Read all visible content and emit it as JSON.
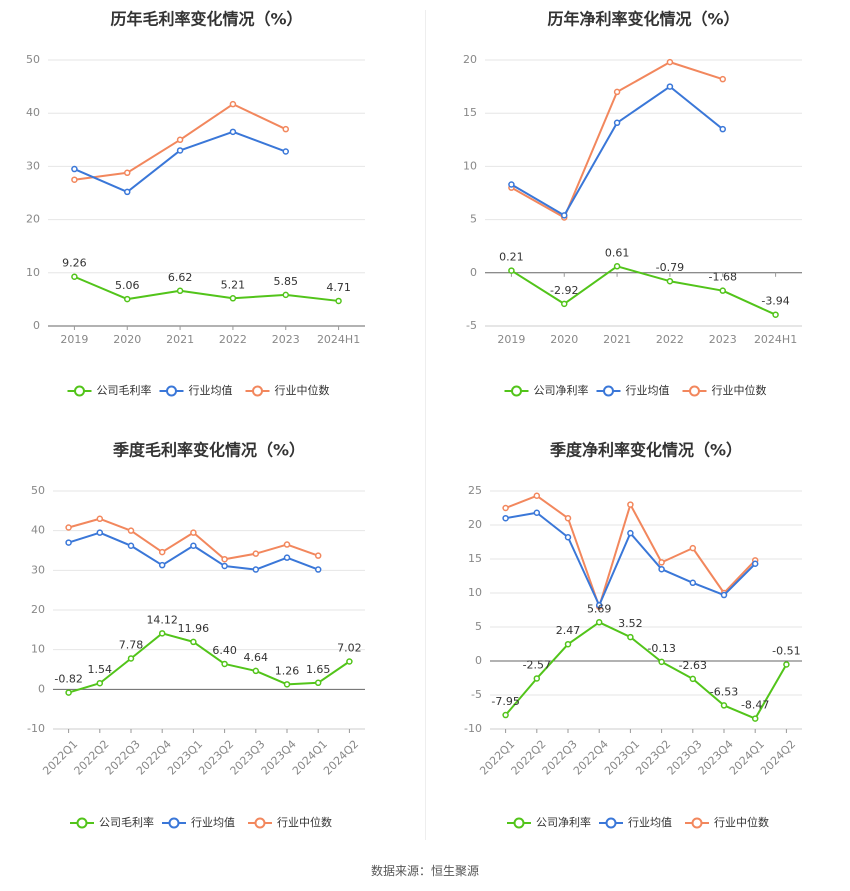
{
  "colors": {
    "company": "#52c41a",
    "avg": "#3a77d8",
    "median": "#f2875d"
  },
  "legend": {
    "avg": "行业均值",
    "median": "行业中位数"
  },
  "source": "数据来源：恒生聚源",
  "chart_data": [
    {
      "type": "line",
      "title": "历年毛利率变化情况（%）",
      "categories": [
        "2019",
        "2020",
        "2021",
        "2022",
        "2023",
        "2024H1"
      ],
      "ylim": [
        0,
        50
      ],
      "yticks": [
        0,
        10,
        20,
        30,
        40,
        50
      ],
      "rotate_x": false,
      "series": [
        {
          "name": "公司毛利率",
          "key": "company",
          "values": [
            9.26,
            5.06,
            6.62,
            5.21,
            5.85,
            4.71
          ],
          "labels": true
        },
        {
          "name": "行业均值",
          "key": "avg",
          "values": [
            29.5,
            25.2,
            33.0,
            36.5,
            32.8,
            null
          ]
        },
        {
          "name": "行业中位数",
          "key": "median",
          "values": [
            27.5,
            28.8,
            35.0,
            41.7,
            37.0,
            null
          ]
        }
      ]
    },
    {
      "type": "line",
      "title": "历年净利率变化情况（%）",
      "categories": [
        "2019",
        "2020",
        "2021",
        "2022",
        "2023",
        "2024H1"
      ],
      "ylim": [
        -5,
        20
      ],
      "yticks": [
        -5,
        0,
        5,
        10,
        15,
        20
      ],
      "rotate_x": false,
      "series": [
        {
          "name": "公司净利率",
          "key": "company",
          "values": [
            0.21,
            -2.92,
            0.61,
            -0.79,
            -1.68,
            -3.94
          ],
          "labels": true
        },
        {
          "name": "行业均值",
          "key": "avg",
          "values": [
            8.3,
            5.4,
            14.1,
            17.5,
            13.5,
            null
          ]
        },
        {
          "name": "行业中位数",
          "key": "median",
          "values": [
            8.0,
            5.2,
            17.0,
            19.8,
            18.2,
            null
          ]
        }
      ]
    },
    {
      "type": "line",
      "title": "季度毛利率变化情况（%）",
      "categories": [
        "2022Q1",
        "2022Q2",
        "2022Q3",
        "2022Q4",
        "2023Q1",
        "2023Q2",
        "2023Q3",
        "2023Q4",
        "2024Q1",
        "2024Q2"
      ],
      "ylim": [
        -10,
        50
      ],
      "yticks": [
        -10,
        0,
        10,
        20,
        30,
        40,
        50
      ],
      "rotate_x": true,
      "series": [
        {
          "name": "公司毛利率",
          "key": "company",
          "values": [
            -0.82,
            1.54,
            7.78,
            14.12,
            11.96,
            6.4,
            4.64,
            1.26,
            1.65,
            7.02
          ],
          "labels": true
        },
        {
          "name": "行业均值",
          "key": "avg",
          "values": [
            37.0,
            39.5,
            36.2,
            31.3,
            36.2,
            31.1,
            30.2,
            33.2,
            30.2,
            null
          ]
        },
        {
          "name": "行业中位数",
          "key": "median",
          "values": [
            40.8,
            43.0,
            40.0,
            34.6,
            39.5,
            32.8,
            34.2,
            36.5,
            33.7,
            null
          ]
        }
      ]
    },
    {
      "type": "line",
      "title": "季度净利率变化情况（%）",
      "categories": [
        "2022Q1",
        "2022Q2",
        "2022Q3",
        "2022Q4",
        "2023Q1",
        "2023Q2",
        "2023Q3",
        "2023Q4",
        "2024Q1",
        "2024Q2"
      ],
      "ylim": [
        -10,
        25
      ],
      "yticks": [
        -10,
        -5,
        0,
        5,
        10,
        15,
        20,
        25
      ],
      "rotate_x": true,
      "series": [
        {
          "name": "公司净利率",
          "key": "company",
          "values": [
            -7.95,
            -2.57,
            2.47,
            5.69,
            3.52,
            -0.13,
            -2.63,
            -6.53,
            -8.47,
            -0.51
          ],
          "labels": true
        },
        {
          "name": "行业均值",
          "key": "avg",
          "values": [
            21.0,
            21.8,
            18.2,
            8.2,
            18.8,
            13.5,
            11.5,
            9.7,
            14.3,
            null
          ]
        },
        {
          "name": "行业中位数",
          "key": "median",
          "values": [
            22.5,
            24.3,
            21.0,
            8.0,
            23.0,
            14.5,
            16.6,
            10.0,
            14.8,
            null
          ]
        }
      ]
    }
  ]
}
